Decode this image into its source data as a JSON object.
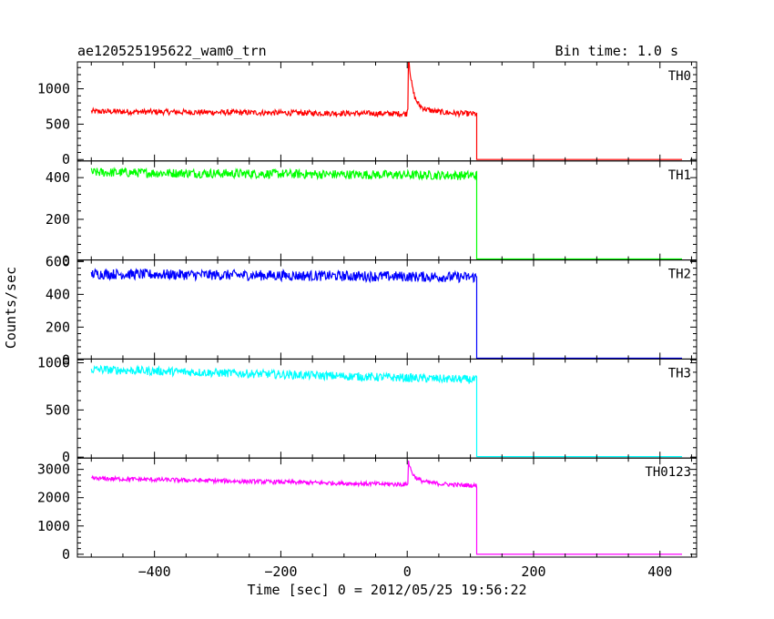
{
  "chart_data": {
    "type": "line",
    "title": "ae120525195622_wam0_trn",
    "subtitle": "Bin time: 1.0 s",
    "xlabel": "Time [sec] 0 = 2012/05/25 19:56:22",
    "ylabel": "Counts/sec",
    "xlim": [
      -522,
      458
    ],
    "xticks": [
      -400,
      -200,
      0,
      200,
      400
    ],
    "x_tick_labels": [
      "−400",
      "−200",
      "0",
      "200",
      "400"
    ],
    "grid": false,
    "panels": [
      {
        "name": "TH0",
        "color": "#ff0000",
        "ylim": [
          -20,
          1380
        ],
        "yticks": [
          0,
          500,
          1000
        ],
        "y_tick_labels": [
          "0",
          "500",
          "1000"
        ],
        "data": {
          "x_start": -500,
          "x_drop": 110,
          "x_end": 435,
          "level_start": 680,
          "level_end": 640,
          "noise": 40,
          "baseline": 0,
          "spike": {
            "x": 2,
            "peak": 1380,
            "width": 6,
            "tail": 150
          }
        }
      },
      {
        "name": "TH1",
        "color": "#00ff00",
        "ylim": [
          5,
          480
        ],
        "yticks": [
          0,
          200,
          400
        ],
        "y_tick_labels": [
          "0",
          "200",
          "400"
        ],
        "data": {
          "x_start": -500,
          "x_drop": 110,
          "x_end": 435,
          "level_start": 425,
          "level_end": 410,
          "noise": 22,
          "baseline": 10
        }
      },
      {
        "name": "TH2",
        "color": "#0000ff",
        "ylim": [
          5,
          610
        ],
        "yticks": [
          0,
          200,
          400,
          600
        ],
        "y_tick_labels": [
          "0",
          "200",
          "400",
          "600"
        ],
        "data": {
          "x_start": -500,
          "x_drop": 110,
          "x_end": 435,
          "level_start": 525,
          "level_end": 505,
          "noise": 32,
          "baseline": 10
        }
      },
      {
        "name": "TH3",
        "color": "#00ffff",
        "ylim": [
          -10,
          1040
        ],
        "yticks": [
          0,
          500,
          1000
        ],
        "y_tick_labels": [
          "0",
          "500",
          "1000"
        ],
        "data": {
          "x_start": -500,
          "x_drop": 110,
          "x_end": 435,
          "level_start": 930,
          "level_end": 820,
          "noise": 45,
          "baseline": 5
        }
      },
      {
        "name": "TH0123",
        "color": "#ff00ff",
        "ylim": [
          -100,
          3400
        ],
        "yticks": [
          0,
          1000,
          2000,
          3000
        ],
        "y_tick_labels": [
          "0",
          "1000",
          "2000",
          "3000"
        ],
        "data": {
          "x_start": -500,
          "x_drop": 110,
          "x_end": 435,
          "level_start": 2680,
          "level_end": 2420,
          "noise": 75,
          "baseline": 0,
          "spike": {
            "x": 2,
            "peak": 3250,
            "width": 6,
            "tail": 250
          }
        }
      }
    ]
  }
}
